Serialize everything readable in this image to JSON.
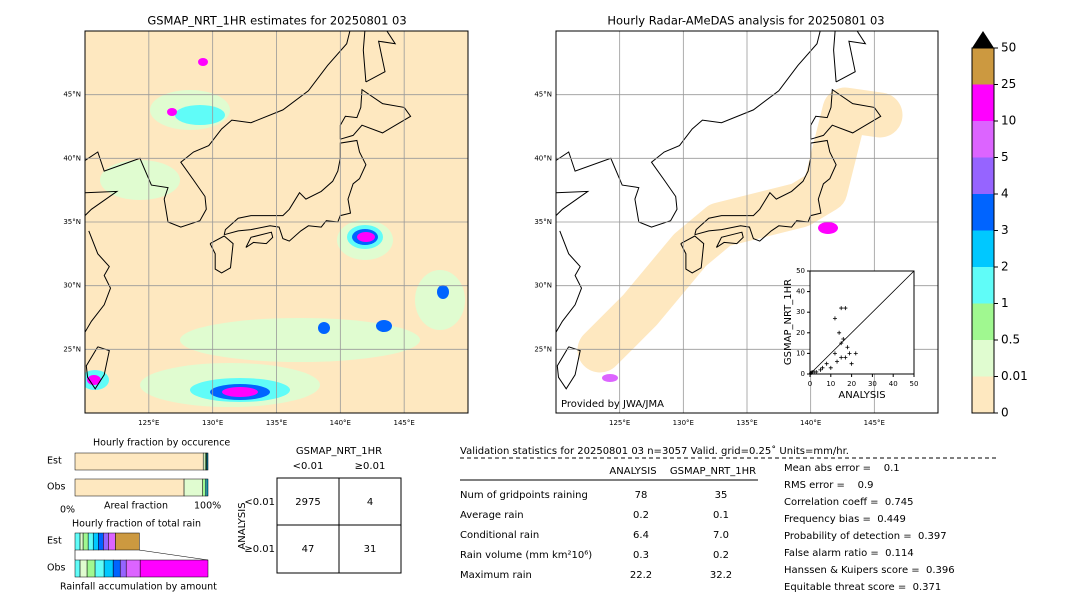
{
  "maps": [
    {
      "title": "GSMAP_NRT_1HR estimates for 20250801 03",
      "lonlim": [
        120,
        150
      ],
      "latlim": [
        20,
        50
      ]
    },
    {
      "title": "Hourly Radar-AMeDAS analysis for 20250801 03",
      "lonlim": [
        120,
        150
      ],
      "latlim": [
        20,
        50
      ],
      "credit": "Provided by JWA/JMA"
    }
  ],
  "lonticks": [
    {
      "value": 125,
      "label": "125°E"
    },
    {
      "value": 130,
      "label": "130°E"
    },
    {
      "value": 135,
      "label": "135°E"
    },
    {
      "value": 140,
      "label": "140°E"
    },
    {
      "value": 145,
      "label": "145°E"
    }
  ],
  "latticks": [
    {
      "value": 25,
      "label": "25°N"
    },
    {
      "value": 30,
      "label": "30°N"
    },
    {
      "value": 35,
      "label": "35°N"
    },
    {
      "value": 40,
      "label": "40°N"
    },
    {
      "value": 45,
      "label": "45°N"
    }
  ],
  "colorbar": {
    "levels": [
      0,
      0.01,
      0.5,
      1,
      2,
      3,
      4,
      5,
      10,
      25,
      50
    ],
    "colors": [
      "#fee8c0",
      "#e0fcd0",
      "#a0f890",
      "#60fcf8",
      "#00c8ff",
      "#0064ff",
      "#9664ff",
      "#dc64ff",
      "#ff00ff",
      "#cc9940"
    ],
    "extend_color": "#000000"
  },
  "scatter": {
    "xlabel": "ANALYSIS",
    "ylabel": "GSMAP_NRT_1HR",
    "xlim": [
      0,
      50
    ],
    "ylim": [
      0,
      50
    ],
    "xticks": [
      0,
      10,
      20,
      30,
      40,
      50
    ],
    "yticks": [
      0,
      10,
      20,
      30,
      40,
      50
    ],
    "x": [
      17,
      15,
      12,
      14,
      16,
      15,
      18,
      19,
      17,
      15,
      12,
      8,
      10,
      5,
      3,
      2,
      1,
      0.5,
      20,
      22,
      13,
      6
    ],
    "y": [
      32,
      32,
      27,
      20,
      17,
      15,
      13,
      10,
      8,
      8,
      10,
      5,
      3,
      2,
      1,
      1,
      1,
      0.5,
      5,
      10,
      6,
      3
    ]
  },
  "occurrence": {
    "title": "Hourly fraction by occurence",
    "rows": [
      "Est",
      "Obs"
    ],
    "xlabels": [
      "0%",
      "Areal fraction",
      "100%"
    ],
    "est": [
      96.4,
      1.5,
      0.8,
      0.6,
      0.7
    ],
    "obs": [
      82.0,
      14.0,
      2.0,
      1.2,
      0.8
    ],
    "colors": [
      "#fee8c0",
      "#e0fcd0",
      "#a0f890",
      "#60fcf8",
      "#00c8ff"
    ]
  },
  "total_rain": {
    "title": "Hourly fraction of total rain",
    "rows": [
      "Est",
      "Obs"
    ],
    "xlabel": "Rainfall accumulation by amount",
    "est": [
      3.8,
      2.3,
      3.8,
      3.8,
      3.8,
      3.8,
      3.8,
      5.3,
      18.0
    ],
    "obs": [
      3.8,
      5.3,
      6.0,
      6.8,
      6.8,
      5.3,
      4.5,
      10.5,
      51.0
    ],
    "colors": [
      "#60fcf8",
      "#e0fcd0",
      "#a0f890",
      "#60fcf8",
      "#00c8ff",
      "#0064ff",
      "#9664ff",
      "#dc64ff",
      "#ff00ff"
    ],
    "est_last_color": "#cc9940"
  },
  "contingency": {
    "title": "GSMAP_NRT_1HR",
    "cols": [
      "<0.01",
      "≥0.01"
    ],
    "ylabel": "ANALYSIS",
    "rows": [
      "<0.01",
      "≥0.01"
    ],
    "values": [
      [
        2975,
        4
      ],
      [
        47,
        31
      ]
    ]
  },
  "validation": {
    "title": "Validation statistics for 20250801 03  n=3057 Valid. grid=0.25˚ Units=mm/hr.",
    "columns": [
      "ANALYSIS",
      "GSMAP_NRT_1HR"
    ],
    "rows": [
      {
        "label": "Num of gridpoints raining",
        "values": [
          "78",
          "35"
        ]
      },
      {
        "label": "Average rain",
        "values": [
          "0.2",
          "0.1"
        ]
      },
      {
        "label": "Conditional rain",
        "values": [
          "6.4",
          "7.0"
        ]
      },
      {
        "label": "Rain volume (mm km²10⁶)",
        "values": [
          "0.3",
          "0.2"
        ]
      },
      {
        "label": "Maximum rain",
        "values": [
          "22.2",
          "32.2"
        ]
      }
    ],
    "scores": [
      "Mean abs error =    0.1",
      "RMS error =    0.9",
      "Correlation coeff =  0.745",
      "Frequency bias =  0.449",
      "Probability of detection =  0.397",
      "False alarm ratio =  0.114",
      "Hanssen & Kuipers score =  0.396",
      "Equitable threat score =  0.371"
    ]
  }
}
